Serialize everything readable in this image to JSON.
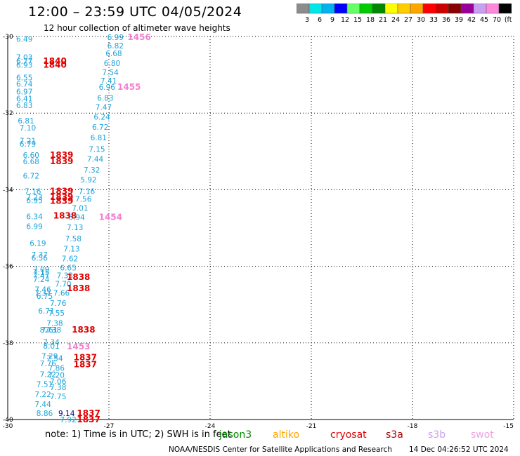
{
  "header": {
    "title": "12:00 – 23:59 UTC 04/05/2024",
    "subtitle": "12 hour collection of altimeter wave heights"
  },
  "legend": {
    "labels": [
      "3",
      "6",
      "9",
      "12",
      "15",
      "18",
      "21",
      "24",
      "27",
      "30",
      "33",
      "36",
      "39",
      "42",
      "45",
      "70",
      "(ft)"
    ],
    "colors": [
      "#8c8c8c",
      "#00e5e5",
      "#00b2ee",
      "#0000ff",
      "#66ff66",
      "#00cc00",
      "#008800",
      "#ffff00",
      "#ffcc00",
      "#ffa500",
      "#ff0000",
      "#cc0000",
      "#880000",
      "#990099",
      "#c8a0f0",
      "#ff88dd",
      "#000000"
    ]
  },
  "chart_data": {
    "type": "scatter",
    "x_ticks": [
      "-30",
      "-27",
      "-24",
      "-21",
      "-18",
      "-15"
    ],
    "y_ticks": [
      "-30",
      "-32",
      "-34",
      "-36",
      "-38",
      "-40"
    ],
    "xlim": [
      -30,
      -15
    ],
    "ylim": [
      -40,
      -30
    ],
    "grid": true,
    "colors": {
      "swh": "#1aa3d9",
      "swh_dark": "#00008b",
      "time_red": "#e00000",
      "time_pink": "#f080d0"
    },
    "points": [
      {
        "lon": -29.75,
        "lat": -30.05,
        "text": "6.49",
        "kind": "swh"
      },
      {
        "lon": -29.75,
        "lat": -30.52,
        "text": "7.03",
        "kind": "swh"
      },
      {
        "lon": -29.75,
        "lat": -30.62,
        "text": "6.77",
        "kind": "swh"
      },
      {
        "lon": -29.75,
        "lat": -30.72,
        "text": "6.93",
        "kind": "swh"
      },
      {
        "lon": -29.75,
        "lat": -31.05,
        "text": "6.55",
        "kind": "swh"
      },
      {
        "lon": -29.75,
        "lat": -31.22,
        "text": "6.74",
        "kind": "swh"
      },
      {
        "lon": -29.75,
        "lat": -31.42,
        "text": "6.97",
        "kind": "swh"
      },
      {
        "lon": -29.75,
        "lat": -31.6,
        "text": "6.41",
        "kind": "swh"
      },
      {
        "lon": -29.75,
        "lat": -31.78,
        "text": "6.83",
        "kind": "swh"
      },
      {
        "lon": -29.7,
        "lat": -32.18,
        "text": "6.81",
        "kind": "swh"
      },
      {
        "lon": -29.65,
        "lat": -32.36,
        "text": "7.10",
        "kind": "swh"
      },
      {
        "lon": -29.65,
        "lat": -32.7,
        "text": "7.21",
        "kind": "swh"
      },
      {
        "lon": -29.65,
        "lat": -32.78,
        "text": "6.79",
        "kind": "swh"
      },
      {
        "lon": -29.55,
        "lat": -33.08,
        "text": "6.60",
        "kind": "swh"
      },
      {
        "lon": -29.55,
        "lat": -33.24,
        "text": "6.68",
        "kind": "swh"
      },
      {
        "lon": -29.55,
        "lat": -33.62,
        "text": "6.72",
        "kind": "swh"
      },
      {
        "lon": -29.5,
        "lat": -34.02,
        "text": "7.16",
        "kind": "swh"
      },
      {
        "lon": -29.45,
        "lat": -34.18,
        "text": "7.23",
        "kind": "swh"
      },
      {
        "lon": -29.45,
        "lat": -34.26,
        "text": "6.95",
        "kind": "swh"
      },
      {
        "lon": -29.45,
        "lat": -34.68,
        "text": "6.34",
        "kind": "swh"
      },
      {
        "lon": -29.45,
        "lat": -34.94,
        "text": "6.99",
        "kind": "swh"
      },
      {
        "lon": -29.35,
        "lat": -35.38,
        "text": "6.19",
        "kind": "swh"
      },
      {
        "lon": -29.3,
        "lat": -35.68,
        "text": "7.37",
        "kind": "swh"
      },
      {
        "lon": -29.3,
        "lat": -35.76,
        "text": "6.56",
        "kind": "swh"
      },
      {
        "lon": -29.25,
        "lat": -36.06,
        "text": "7.09",
        "kind": "swh"
      },
      {
        "lon": -29.25,
        "lat": -36.14,
        "text": "7.15",
        "kind": "swh"
      },
      {
        "lon": -29.25,
        "lat": -36.22,
        "text": "7.47",
        "kind": "swh"
      },
      {
        "lon": -29.25,
        "lat": -36.32,
        "text": "7.24",
        "kind": "swh"
      },
      {
        "lon": -29.2,
        "lat": -36.58,
        "text": "7.46",
        "kind": "swh"
      },
      {
        "lon": -29.2,
        "lat": -36.68,
        "text": "7.37",
        "kind": "swh"
      },
      {
        "lon": -29.15,
        "lat": -36.76,
        "text": "6.75",
        "kind": "swh"
      },
      {
        "lon": -29.1,
        "lat": -37.14,
        "text": "6.71",
        "kind": "swh"
      },
      {
        "lon": -29.05,
        "lat": -37.64,
        "text": "8.73",
        "kind": "swh"
      },
      {
        "lon": -29.0,
        "lat": -37.64,
        "text": "7.61",
        "kind": "swh"
      },
      {
        "lon": -28.95,
        "lat": -37.96,
        "text": "7.34",
        "kind": "swh"
      },
      {
        "lon": -28.95,
        "lat": -38.06,
        "text": "8.01",
        "kind": "swh"
      },
      {
        "lon": -29.0,
        "lat": -38.32,
        "text": "7.29",
        "kind": "swh"
      },
      {
        "lon": -29.05,
        "lat": -38.52,
        "text": "7.76",
        "kind": "swh"
      },
      {
        "lon": -29.05,
        "lat": -38.8,
        "text": "7.22",
        "kind": "swh"
      },
      {
        "lon": -29.15,
        "lat": -39.06,
        "text": "7.51",
        "kind": "swh"
      },
      {
        "lon": -29.2,
        "lat": -39.32,
        "text": "7.22",
        "kind": "swh"
      },
      {
        "lon": -29.2,
        "lat": -39.58,
        "text": "7.44",
        "kind": "swh"
      },
      {
        "lon": -29.15,
        "lat": -39.82,
        "text": "8.86",
        "kind": "swh"
      },
      {
        "lon": -28.5,
        "lat": -39.82,
        "text": "9.14",
        "kind": "swh_dark"
      },
      {
        "lon": -28.45,
        "lat": -39.98,
        "text": "7.92",
        "kind": "swh"
      },
      {
        "lon": -27.05,
        "lat": -30.0,
        "text": "6.99",
        "kind": "swh"
      },
      {
        "lon": -27.05,
        "lat": -30.22,
        "text": "6.82",
        "kind": "swh"
      },
      {
        "lon": -27.1,
        "lat": -30.42,
        "text": "6.68",
        "kind": "swh"
      },
      {
        "lon": -27.15,
        "lat": -30.68,
        "text": "6.80",
        "kind": "swh"
      },
      {
        "lon": -27.2,
        "lat": -30.92,
        "text": "7.54",
        "kind": "swh"
      },
      {
        "lon": -27.25,
        "lat": -31.14,
        "text": "7.41",
        "kind": "swh"
      },
      {
        "lon": -27.3,
        "lat": -31.3,
        "text": "6.96",
        "kind": "swh"
      },
      {
        "lon": -27.35,
        "lat": -31.58,
        "text": "6.83",
        "kind": "swh"
      },
      {
        "lon": -27.4,
        "lat": -31.82,
        "text": "7.47",
        "kind": "swh"
      },
      {
        "lon": -27.45,
        "lat": -32.08,
        "text": "6.24",
        "kind": "swh"
      },
      {
        "lon": -27.5,
        "lat": -32.34,
        "text": "6.72",
        "kind": "swh"
      },
      {
        "lon": -27.55,
        "lat": -32.62,
        "text": "6.81",
        "kind": "swh"
      },
      {
        "lon": -27.6,
        "lat": -32.92,
        "text": "7.15",
        "kind": "swh"
      },
      {
        "lon": -27.65,
        "lat": -33.18,
        "text": "7.44",
        "kind": "swh"
      },
      {
        "lon": -27.75,
        "lat": -33.46,
        "text": "7.32",
        "kind": "swh"
      },
      {
        "lon": -27.85,
        "lat": -33.72,
        "text": "5.92",
        "kind": "swh"
      },
      {
        "lon": -27.9,
        "lat": -34.02,
        "text": "7.16",
        "kind": "swh"
      },
      {
        "lon": -28.0,
        "lat": -34.22,
        "text": "7.56",
        "kind": "swh"
      },
      {
        "lon": -28.1,
        "lat": -34.46,
        "text": "7.01",
        "kind": "swh"
      },
      {
        "lon": -28.2,
        "lat": -34.7,
        "text": "6.94",
        "kind": "swh"
      },
      {
        "lon": -28.25,
        "lat": -34.96,
        "text": "7.13",
        "kind": "swh"
      },
      {
        "lon": -28.3,
        "lat": -35.26,
        "text": "7.58",
        "kind": "swh"
      },
      {
        "lon": -28.35,
        "lat": -35.52,
        "text": "7.13",
        "kind": "swh"
      },
      {
        "lon": -28.4,
        "lat": -35.78,
        "text": "7.62",
        "kind": "swh"
      },
      {
        "lon": -28.45,
        "lat": -36.02,
        "text": "6.65",
        "kind": "swh"
      },
      {
        "lon": -28.55,
        "lat": -36.22,
        "text": "7.33",
        "kind": "swh"
      },
      {
        "lon": -28.6,
        "lat": -36.44,
        "text": "7.70",
        "kind": "swh"
      },
      {
        "lon": -28.65,
        "lat": -36.68,
        "text": "7.66",
        "kind": "swh"
      },
      {
        "lon": -28.75,
        "lat": -36.94,
        "text": "7.76",
        "kind": "swh"
      },
      {
        "lon": -28.8,
        "lat": -37.2,
        "text": "7.55",
        "kind": "swh"
      },
      {
        "lon": -28.85,
        "lat": -37.46,
        "text": "7.38",
        "kind": "swh"
      },
      {
        "lon": -28.9,
        "lat": -37.64,
        "text": "7.38",
        "kind": "swh"
      },
      {
        "lon": -28.85,
        "lat": -38.38,
        "text": "7.54",
        "kind": "swh"
      },
      {
        "lon": -28.8,
        "lat": -38.64,
        "text": "7.86",
        "kind": "swh"
      },
      {
        "lon": -28.8,
        "lat": -38.82,
        "text": "7.20",
        "kind": "swh"
      },
      {
        "lon": -28.75,
        "lat": -38.98,
        "text": "7.06",
        "kind": "swh"
      },
      {
        "lon": -28.75,
        "lat": -39.14,
        "text": "7.38",
        "kind": "swh"
      },
      {
        "lon": -28.75,
        "lat": -39.38,
        "text": "7.75",
        "kind": "swh"
      },
      {
        "lon": -28.95,
        "lat": -30.62,
        "text": "1840",
        "kind": "time_red"
      },
      {
        "lon": -28.95,
        "lat": -30.72,
        "text": "1840",
        "kind": "time_red"
      },
      {
        "lon": -28.75,
        "lat": -33.08,
        "text": "1839",
        "kind": "time_red"
      },
      {
        "lon": -28.75,
        "lat": -33.24,
        "text": "1839",
        "kind": "time_red"
      },
      {
        "lon": -28.75,
        "lat": -34.02,
        "text": "1839",
        "kind": "time_red"
      },
      {
        "lon": -28.75,
        "lat": -34.18,
        "text": "1839",
        "kind": "time_red"
      },
      {
        "lon": -28.75,
        "lat": -34.28,
        "text": "1839",
        "kind": "time_red"
      },
      {
        "lon": -28.65,
        "lat": -34.66,
        "text": "1838",
        "kind": "time_red"
      },
      {
        "lon": -28.25,
        "lat": -36.26,
        "text": "1838",
        "kind": "time_red"
      },
      {
        "lon": -28.25,
        "lat": -36.56,
        "text": "1838",
        "kind": "time_red"
      },
      {
        "lon": -28.1,
        "lat": -37.64,
        "text": "1838",
        "kind": "time_red"
      },
      {
        "lon": -28.05,
        "lat": -38.36,
        "text": "1837",
        "kind": "time_red"
      },
      {
        "lon": -28.05,
        "lat": -38.54,
        "text": "1837",
        "kind": "time_red"
      },
      {
        "lon": -27.95,
        "lat": -39.82,
        "text": "1837",
        "kind": "time_red"
      },
      {
        "lon": -27.95,
        "lat": -39.98,
        "text": "1837",
        "kind": "time_red"
      },
      {
        "lon": -26.45,
        "lat": -30.0,
        "text": "1456",
        "kind": "time_pink"
      },
      {
        "lon": -26.75,
        "lat": -31.3,
        "text": "1455",
        "kind": "time_pink"
      },
      {
        "lon": -27.3,
        "lat": -34.7,
        "text": "1454",
        "kind": "time_pink"
      },
      {
        "lon": -28.25,
        "lat": -38.08,
        "text": "1453",
        "kind": "time_pink"
      }
    ]
  },
  "footer": {
    "note_text": "note:  1) Time is in UTC; 2) SWH is in feet",
    "satellites": [
      {
        "name": "jason3",
        "color": "#008800"
      },
      {
        "name": "altiko",
        "color": "#ffa500"
      },
      {
        "name": "cryosat",
        "color": "#e00000"
      },
      {
        "name": "s3a",
        "color": "#aa0000"
      },
      {
        "name": "s3b",
        "color": "#c8a0f0"
      },
      {
        "name": "swot",
        "color": "#f0a0e0"
      }
    ],
    "credit": "NOAA/NESDIS Center for Satellite Applications and Research",
    "stamp": "14 Dec 04:26:52 UTC 2024"
  }
}
